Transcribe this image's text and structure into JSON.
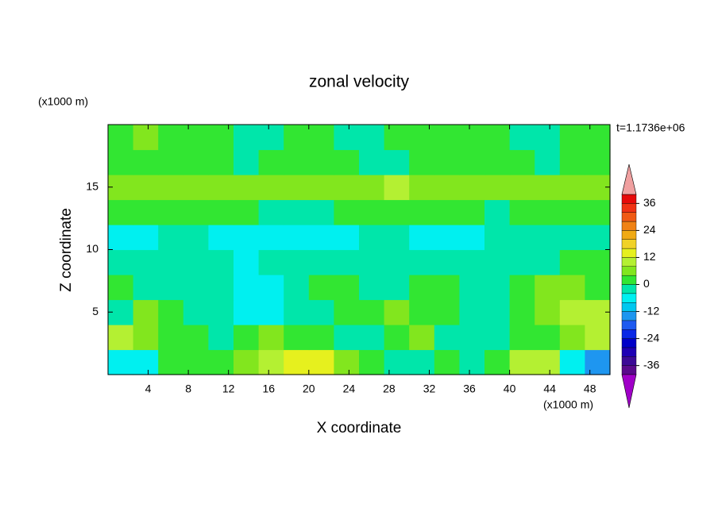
{
  "chart_data": {
    "type": "contour",
    "title": "zonal velocity",
    "xlabel": "X coordinate",
    "ylabel": "Z coordinate",
    "x_unit": "(x1000 m)",
    "y_unit": "(x1000 m)",
    "annotation": "t=1.1736e+06",
    "xlim": [
      0,
      50
    ],
    "ylim": [
      0,
      20
    ],
    "xticks": [
      4,
      8,
      12,
      16,
      20,
      24,
      28,
      32,
      36,
      40,
      44,
      48
    ],
    "yticks": [
      5,
      10,
      15
    ],
    "x": [
      1.25,
      3.75,
      6.25,
      8.75,
      11.25,
      13.75,
      16.25,
      18.75,
      21.25,
      23.75,
      26.25,
      28.75,
      31.25,
      33.75,
      36.25,
      38.75,
      41.25,
      43.75,
      46.25,
      48.75
    ],
    "y": [
      1,
      3,
      5,
      7,
      9,
      11,
      13,
      15,
      17,
      19
    ],
    "z": [
      [
        -6,
        -6,
        2,
        2,
        2,
        6,
        10,
        13,
        13,
        6,
        2,
        -2,
        -2,
        2,
        -2,
        2,
        10,
        10,
        -6,
        -14
      ],
      [
        8,
        6,
        2,
        2,
        -2,
        2,
        6,
        2,
        2,
        -2,
        -2,
        2,
        6,
        -2,
        -2,
        -2,
        2,
        2,
        6,
        10
      ],
      [
        -2,
        6,
        2,
        -2,
        -2,
        -6,
        -6,
        -2,
        -2,
        2,
        2,
        6,
        2,
        2,
        -2,
        -2,
        2,
        6,
        10,
        10
      ],
      [
        2,
        -2,
        -2,
        -2,
        -2,
        -8,
        -6,
        -2,
        2,
        2,
        -2,
        -2,
        2,
        2,
        -2,
        -2,
        2,
        6,
        6,
        2
      ],
      [
        -2,
        -2,
        -2,
        -2,
        -2,
        -6,
        -2,
        -2,
        -2,
        -2,
        -2,
        -2,
        -2,
        -2,
        -2,
        -2,
        -2,
        -2,
        2,
        2
      ],
      [
        -6,
        -6,
        -2,
        -2,
        -6,
        -6,
        -6,
        -6,
        -6,
        -6,
        -2,
        -2,
        -6,
        -6,
        -6,
        -2,
        -2,
        -2,
        -2,
        -2
      ],
      [
        2,
        2,
        2,
        2,
        2,
        2,
        -2,
        -2,
        -2,
        2,
        2,
        2,
        2,
        2,
        2,
        -2,
        2,
        2,
        2,
        2
      ],
      [
        6,
        6,
        6,
        6,
        6,
        6,
        6,
        6,
        6,
        6,
        6,
        10,
        6,
        6,
        6,
        6,
        6,
        6,
        6,
        6
      ],
      [
        2,
        2,
        2,
        2,
        2,
        -2,
        2,
        2,
        2,
        2,
        -2,
        -2,
        2,
        2,
        2,
        2,
        2,
        -2,
        2,
        2
      ],
      [
        2,
        6,
        2,
        2,
        2,
        -2,
        -2,
        2,
        2,
        -2,
        -2,
        2,
        2,
        2,
        2,
        2,
        -2,
        -2,
        2,
        2
      ]
    ],
    "levels": [
      -40,
      -36,
      -32,
      -28,
      -24,
      -20,
      -16,
      -12,
      -8,
      -4,
      0,
      4,
      8,
      12,
      16,
      20,
      24,
      28,
      32,
      36,
      40
    ],
    "colors": [
      "#5a0a8c",
      "#3c0a96",
      "#1e00b4",
      "#0000c8",
      "#0a28e6",
      "#1e5af0",
      "#1e96f0",
      "#00c8f0",
      "#00f0f0",
      "#00e6aa",
      "#32e632",
      "#82e61e",
      "#b4f032",
      "#e6f01e",
      "#f0d228",
      "#f0aa14",
      "#f08214",
      "#f05a14",
      "#f03214",
      "#e60a0a"
    ],
    "under_color": "#a000c8",
    "over_color": "#f0a0a0",
    "cbar_ticks": [
      -36,
      -24,
      -12,
      0,
      12,
      24,
      36
    ]
  }
}
